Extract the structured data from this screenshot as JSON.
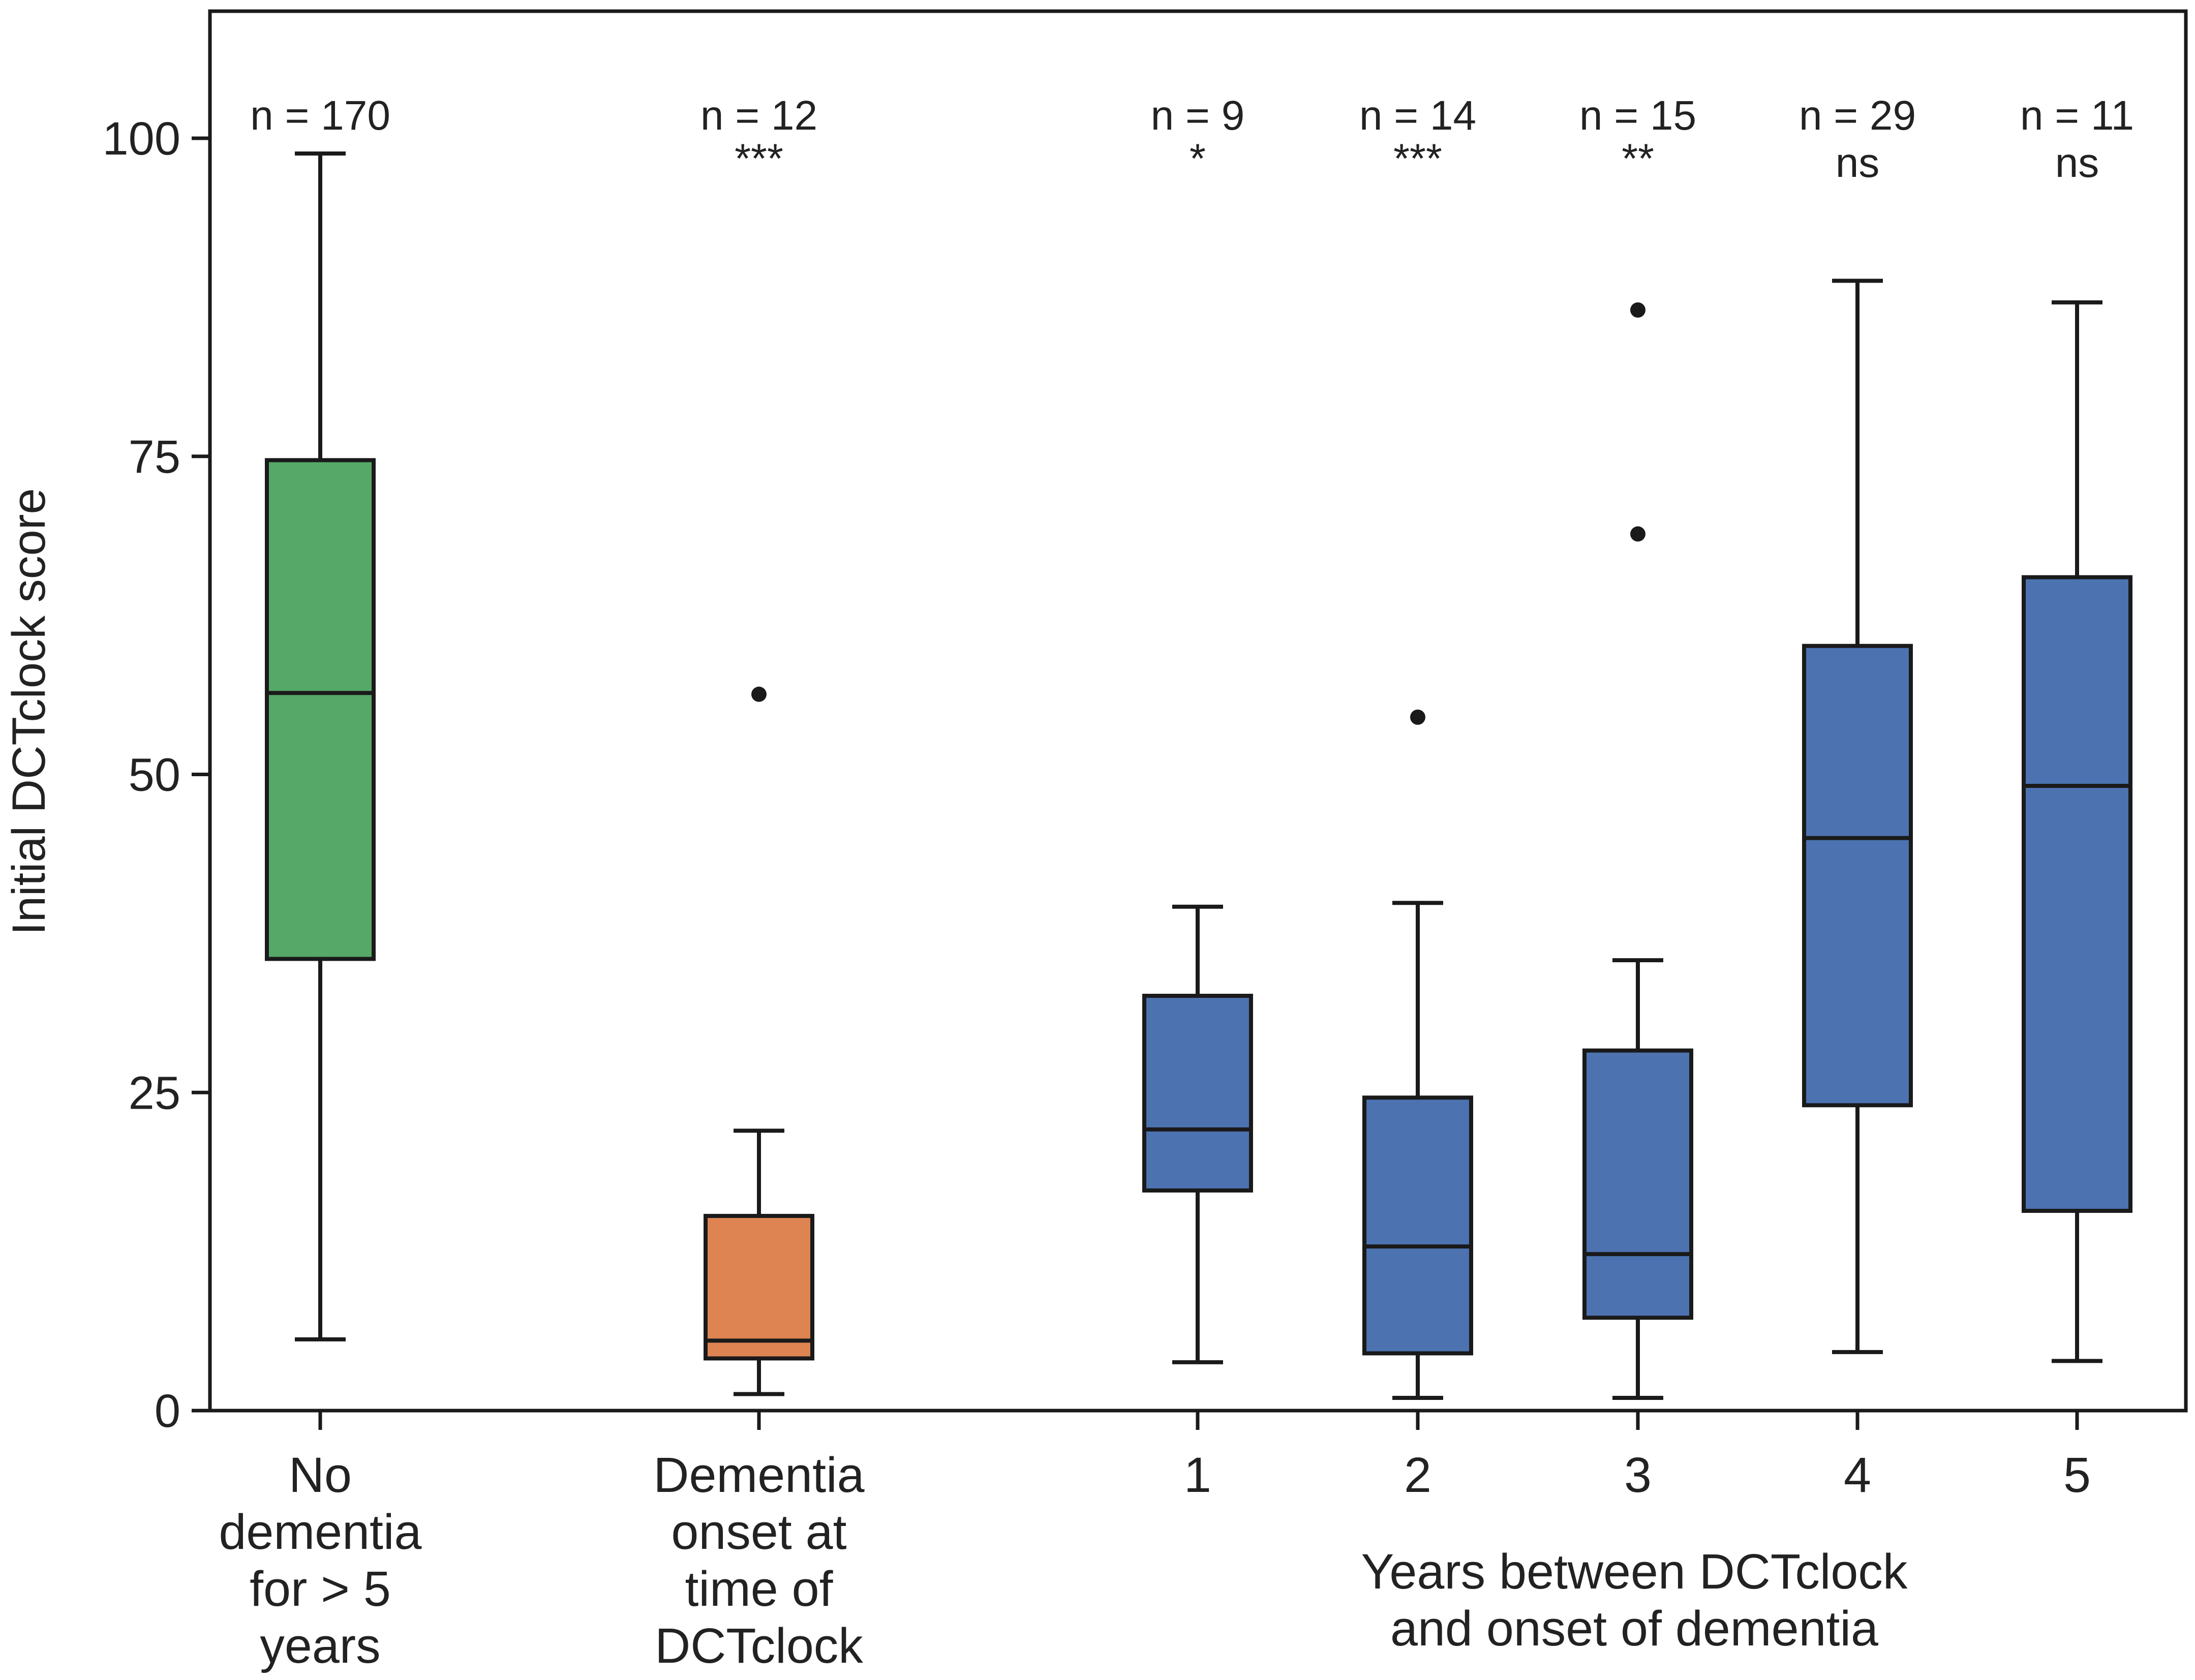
{
  "chart_data": {
    "type": "box",
    "title": "",
    "xlabel": "Years between DCTclock and onset of dementia",
    "ylabel": "Initial DCTclock score",
    "ylim": [
      0,
      110
    ],
    "yticks": [
      0,
      25,
      50,
      75,
      100
    ],
    "grid": false,
    "legend": "none",
    "colors": {
      "green": "#55a868",
      "orange": "#dd8452",
      "blue": "#4c72b0",
      "line": "#1a1a1a"
    },
    "groups": [
      {
        "label_lines": [
          "No",
          "dementia",
          "for > 5",
          "years"
        ],
        "n_label": "n = 170",
        "sig_label": "",
        "color": "#55a868",
        "whisker_low": 5.6,
        "q1": 35.5,
        "median": 56.4,
        "q3": 74.7,
        "whisker_high": 98.8,
        "outliers": []
      },
      {
        "label_lines": [
          "Dementia",
          "onset at",
          "time of",
          "DCTclock"
        ],
        "n_label": "n = 12",
        "sig_label": "***",
        "color": "#dd8452",
        "whisker_low": 1.3,
        "q1": 4.1,
        "median": 5.5,
        "q3": 15.3,
        "whisker_high": 22.0,
        "outliers": [
          56.3
        ]
      },
      {
        "label_lines": [
          "1"
        ],
        "n_label": "n = 9",
        "sig_label": "*",
        "color": "#4c72b0",
        "whisker_low": 3.8,
        "q1": 17.3,
        "median": 22.1,
        "q3": 32.6,
        "whisker_high": 39.6,
        "outliers": []
      },
      {
        "label_lines": [
          "2"
        ],
        "n_label": "n = 14",
        "sig_label": "***",
        "color": "#4c72b0",
        "whisker_low": 1.0,
        "q1": 4.5,
        "median": 12.9,
        "q3": 24.6,
        "whisker_high": 39.9,
        "outliers": [
          54.5
        ]
      },
      {
        "label_lines": [
          "3"
        ],
        "n_label": "n = 15",
        "sig_label": "**",
        "color": "#4c72b0",
        "whisker_low": 1.0,
        "q1": 7.3,
        "median": 12.3,
        "q3": 28.3,
        "whisker_high": 35.4,
        "outliers": [
          68.9,
          86.5
        ]
      },
      {
        "label_lines": [
          "4"
        ],
        "n_label": "n = 29",
        "sig_label": "ns",
        "color": "#4c72b0",
        "whisker_low": 4.6,
        "q1": 24.0,
        "median": 45.0,
        "q3": 60.1,
        "whisker_high": 88.8,
        "outliers": []
      },
      {
        "label_lines": [
          "5"
        ],
        "n_label": "n = 11",
        "sig_label": "ns",
        "color": "#4c72b0",
        "whisker_low": 3.9,
        "q1": 15.7,
        "median": 49.1,
        "q3": 65.5,
        "whisker_high": 87.1,
        "outliers": []
      }
    ]
  }
}
